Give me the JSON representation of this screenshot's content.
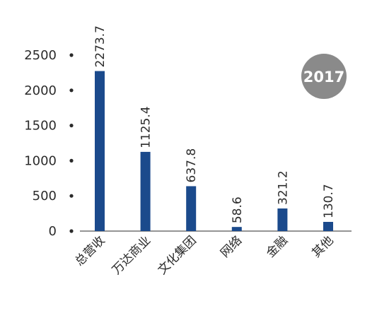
{
  "chart_data": {
    "type": "bar",
    "categories": [
      "总营收",
      "万达商业",
      "文化集团",
      "网络",
      "金融",
      "其他"
    ],
    "values": [
      2273.7,
      1125.4,
      637.8,
      58.6,
      321.2,
      130.7
    ],
    "data_labels": [
      "2273.7",
      "1125.4",
      "637.8",
      "58.6",
      "321.2",
      "130.7"
    ],
    "y_ticks": [
      0,
      500,
      1000,
      1500,
      2000,
      2500
    ],
    "ylim": [
      0,
      2500
    ],
    "title": "",
    "xlabel": "",
    "ylabel": "",
    "grid": false,
    "badge": "2017",
    "colors": {
      "bar": "#1b4a8c",
      "badge": "#8a8a8a",
      "axis": "#2b2b2b"
    }
  }
}
